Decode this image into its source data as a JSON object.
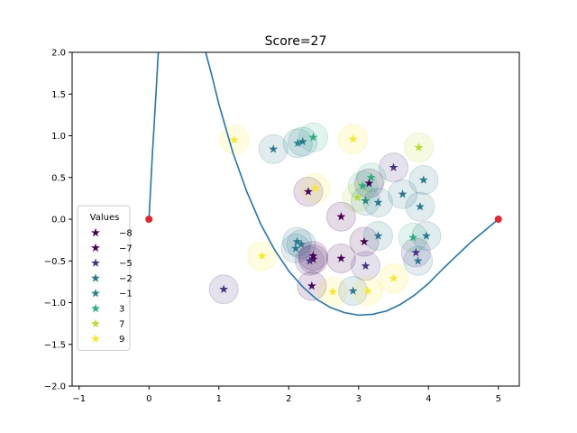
{
  "chart_data": {
    "type": "scatter",
    "title": "Score=27",
    "xlim": [
      -1.1,
      5.3
    ],
    "ylim": [
      -2.0,
      2.0
    ],
    "x_ticks": [
      -1,
      0,
      1,
      2,
      3,
      4,
      5
    ],
    "y_ticks": [
      -2.0,
      -1.5,
      -1.0,
      -0.5,
      0.0,
      0.5,
      1.0,
      1.5,
      2.0
    ],
    "x_tick_labels": [
      "−1",
      "0",
      "1",
      "2",
      "3",
      "4",
      "5"
    ],
    "y_tick_labels": [
      "−2.0",
      "−1.5",
      "−1.0",
      "−0.5",
      "0.0",
      "0.5",
      "1.0",
      "1.5",
      "2.0"
    ],
    "grid": false,
    "legend": {
      "title": "Values",
      "placement": "lower-left",
      "entries": [
        {
          "label": "−8",
          "value": -8,
          "color": "#440154"
        },
        {
          "label": "−7",
          "value": -7,
          "color": "#46085c"
        },
        {
          "label": "−5",
          "value": -5,
          "color": "#463480"
        },
        {
          "label": "−2",
          "value": -2,
          "color": "#2a788e"
        },
        {
          "label": "−1",
          "value": -1,
          "color": "#23888e"
        },
        {
          "label": "3",
          "value": 3,
          "color": "#29af7f"
        },
        {
          "label": "7",
          "value": 7,
          "color": "#b5de2b"
        },
        {
          "label": "9",
          "value": 9,
          "color": "#fde725"
        }
      ]
    },
    "endpoints": [
      {
        "x": 0,
        "y": 0,
        "color": "#e6262b"
      },
      {
        "x": 5,
        "y": 0,
        "color": "#e6262b"
      }
    ],
    "curve": {
      "color": "#1f77b4",
      "points": [
        [
          0.0,
          0.0
        ],
        [
          0.05,
          0.8
        ],
        [
          0.1,
          1.5
        ],
        [
          0.14,
          2.1
        ],
        [
          0.78,
          2.1
        ],
        [
          0.9,
          1.72
        ],
        [
          1.0,
          1.38
        ],
        [
          1.2,
          0.8
        ],
        [
          1.4,
          0.33
        ],
        [
          1.6,
          -0.06
        ],
        [
          1.8,
          -0.37
        ],
        [
          2.0,
          -0.62
        ],
        [
          2.2,
          -0.81
        ],
        [
          2.4,
          -0.96
        ],
        [
          2.6,
          -1.06
        ],
        [
          2.8,
          -1.12
        ],
        [
          3.0,
          -1.15
        ],
        [
          3.2,
          -1.14
        ],
        [
          3.4,
          -1.1
        ],
        [
          3.6,
          -1.02
        ],
        [
          3.8,
          -0.91
        ],
        [
          4.0,
          -0.77
        ],
        [
          4.2,
          -0.6
        ],
        [
          4.4,
          -0.44
        ],
        [
          4.6,
          -0.28
        ],
        [
          4.8,
          -0.14
        ],
        [
          5.0,
          0.0
        ]
      ]
    },
    "points": [
      {
        "x": 1.22,
        "y": 0.95,
        "value": 9
      },
      {
        "x": 1.78,
        "y": 0.84,
        "value": -2
      },
      {
        "x": 2.13,
        "y": 0.91,
        "value": -1
      },
      {
        "x": 2.2,
        "y": 0.93,
        "value": -2
      },
      {
        "x": 2.35,
        "y": 0.98,
        "value": 3
      },
      {
        "x": 2.92,
        "y": 0.96,
        "value": 9
      },
      {
        "x": 3.86,
        "y": 0.86,
        "value": 7
      },
      {
        "x": 3.5,
        "y": 0.62,
        "value": -5
      },
      {
        "x": 2.28,
        "y": 0.33,
        "value": -7
      },
      {
        "x": 2.38,
        "y": 0.37,
        "value": 9
      },
      {
        "x": 3.18,
        "y": 0.5,
        "value": 3
      },
      {
        "x": 3.15,
        "y": 0.43,
        "value": -8
      },
      {
        "x": 3.06,
        "y": 0.4,
        "value": 3
      },
      {
        "x": 2.98,
        "y": 0.26,
        "value": 7
      },
      {
        "x": 3.1,
        "y": 0.22,
        "value": -1
      },
      {
        "x": 3.28,
        "y": 0.2,
        "value": -2
      },
      {
        "x": 3.63,
        "y": 0.3,
        "value": -2
      },
      {
        "x": 3.93,
        "y": 0.47,
        "value": -2
      },
      {
        "x": 3.88,
        "y": 0.15,
        "value": -2
      },
      {
        "x": 2.75,
        "y": 0.03,
        "value": -8
      },
      {
        "x": 2.12,
        "y": -0.27,
        "value": -2
      },
      {
        "x": 2.18,
        "y": -0.3,
        "value": -2
      },
      {
        "x": 2.1,
        "y": -0.35,
        "value": -2
      },
      {
        "x": 2.35,
        "y": -0.44,
        "value": -8
      },
      {
        "x": 2.35,
        "y": -0.48,
        "value": -8
      },
      {
        "x": 2.3,
        "y": -0.5,
        "value": -5
      },
      {
        "x": 2.75,
        "y": -0.47,
        "value": -8
      },
      {
        "x": 3.08,
        "y": -0.27,
        "value": -8
      },
      {
        "x": 3.28,
        "y": -0.2,
        "value": -2
      },
      {
        "x": 3.78,
        "y": -0.22,
        "value": 3
      },
      {
        "x": 3.97,
        "y": -0.2,
        "value": -2
      },
      {
        "x": 3.82,
        "y": -0.4,
        "value": -5
      },
      {
        "x": 3.85,
        "y": -0.5,
        "value": -2
      },
      {
        "x": 3.1,
        "y": -0.56,
        "value": -5
      },
      {
        "x": 1.62,
        "y": -0.44,
        "value": 9
      },
      {
        "x": 1.07,
        "y": -0.84,
        "value": -5
      },
      {
        "x": 2.33,
        "y": -0.8,
        "value": -7
      },
      {
        "x": 2.63,
        "y": -0.87,
        "value": 9
      },
      {
        "x": 2.92,
        "y": -0.86,
        "value": -2
      },
      {
        "x": 3.13,
        "y": -0.86,
        "value": 9
      },
      {
        "x": 3.5,
        "y": -0.71,
        "value": 9
      }
    ]
  }
}
